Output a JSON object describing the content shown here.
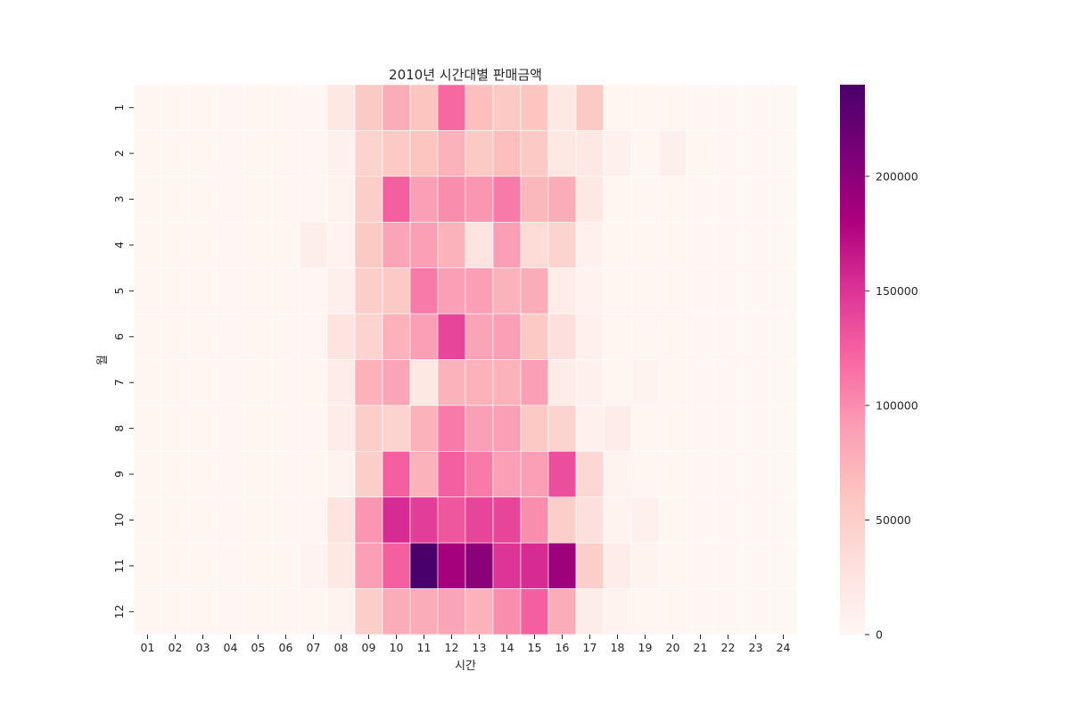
{
  "chart_data": {
    "type": "heatmap",
    "title": "2010년 시간대별 판매금액",
    "xlabel": "시간",
    "ylabel": "월",
    "x_categories": [
      "01",
      "02",
      "03",
      "04",
      "05",
      "06",
      "07",
      "08",
      "09",
      "10",
      "11",
      "12",
      "13",
      "14",
      "15",
      "16",
      "17",
      "18",
      "19",
      "20",
      "21",
      "22",
      "23",
      "24"
    ],
    "y_categories": [
      "1",
      "2",
      "3",
      "4",
      "5",
      "6",
      "7",
      "8",
      "9",
      "10",
      "11",
      "12"
    ],
    "values": [
      [
        1000,
        1500,
        1500,
        2000,
        1500,
        1500,
        500,
        20000,
        55000,
        80000,
        60000,
        120000,
        65000,
        55000,
        60000,
        20000,
        55000,
        1500,
        1500,
        1000,
        500,
        500,
        500,
        500
      ],
      [
        1000,
        1500,
        1500,
        2000,
        1500,
        1500,
        2000,
        8000,
        45000,
        55000,
        60000,
        75000,
        55000,
        65000,
        55000,
        20000,
        20000,
        8000,
        1500,
        10000,
        1000,
        500,
        500,
        500
      ],
      [
        1000,
        1500,
        1500,
        2000,
        1500,
        1500,
        2000,
        5000,
        50000,
        125000,
        90000,
        100000,
        95000,
        110000,
        70000,
        80000,
        20000,
        1000,
        1000,
        1000,
        500,
        500,
        500,
        500
      ],
      [
        1000,
        1500,
        1500,
        2000,
        1500,
        1500,
        12000,
        6000,
        55000,
        85000,
        90000,
        75000,
        25000,
        90000,
        35000,
        45000,
        8000,
        3000,
        1500,
        1000,
        500,
        500,
        500,
        500
      ],
      [
        1000,
        1500,
        1500,
        2000,
        1500,
        1500,
        2000,
        10000,
        50000,
        55000,
        110000,
        90000,
        90000,
        75000,
        80000,
        15000,
        6000,
        1000,
        1000,
        1000,
        500,
        500,
        500,
        500
      ],
      [
        1000,
        1500,
        1500,
        2000,
        1500,
        1500,
        2000,
        25000,
        45000,
        75000,
        90000,
        140000,
        85000,
        90000,
        55000,
        30000,
        8000,
        1000,
        1000,
        1000,
        500,
        500,
        500,
        500
      ],
      [
        1000,
        1500,
        1500,
        2000,
        1500,
        1500,
        1500,
        15000,
        75000,
        85000,
        20000,
        75000,
        75000,
        75000,
        90000,
        15000,
        8000,
        1000,
        5000,
        1000,
        500,
        500,
        500,
        500
      ],
      [
        1000,
        1500,
        1500,
        2000,
        1500,
        1500,
        2000,
        15000,
        50000,
        45000,
        75000,
        110000,
        90000,
        90000,
        55000,
        45000,
        8000,
        15000,
        1000,
        1000,
        500,
        500,
        500,
        500
      ],
      [
        1000,
        1500,
        1500,
        2000,
        1500,
        1500,
        1000,
        5000,
        50000,
        125000,
        75000,
        125000,
        110000,
        90000,
        90000,
        135000,
        40000,
        5000,
        3000,
        1000,
        500,
        500,
        500,
        500
      ],
      [
        1000,
        1500,
        1500,
        2000,
        1500,
        1500,
        2000,
        25000,
        95000,
        155000,
        145000,
        130000,
        140000,
        140000,
        100000,
        50000,
        30000,
        5000,
        8000,
        1000,
        500,
        500,
        500,
        500
      ],
      [
        1000,
        1500,
        1500,
        2000,
        1500,
        1500,
        5000,
        20000,
        90000,
        125000,
        240000,
        185000,
        200000,
        150000,
        155000,
        190000,
        50000,
        15000,
        5000,
        1000,
        500,
        500,
        500,
        500
      ],
      [
        1000,
        1500,
        1500,
        2000,
        1500,
        1500,
        1000,
        5000,
        50000,
        80000,
        80000,
        85000,
        75000,
        100000,
        125000,
        80000,
        15000,
        5000,
        3000,
        1000,
        500,
        500,
        500,
        500
      ]
    ],
    "colorbar": {
      "colormap": "RdPu",
      "range": [
        0,
        240000
      ],
      "ticks": [
        0,
        50000,
        100000,
        150000,
        200000
      ]
    }
  }
}
